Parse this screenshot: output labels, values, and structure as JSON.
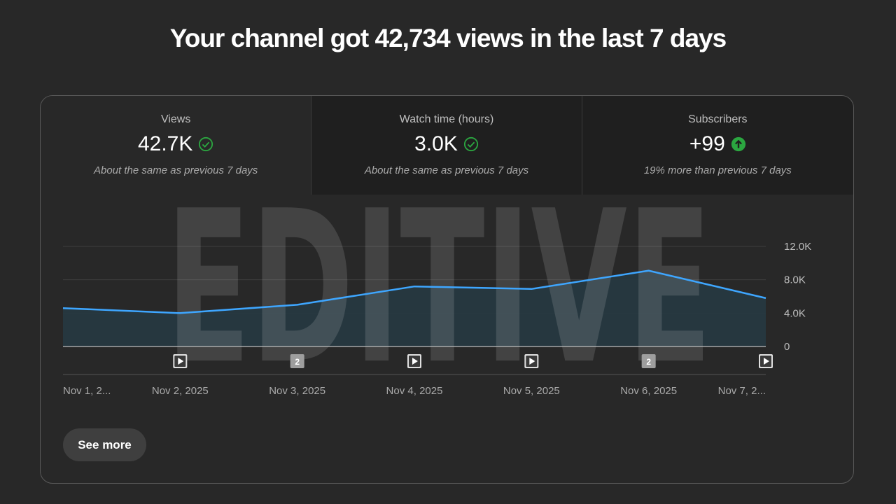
{
  "headline": "Your channel got 42,734 views in the last 7 days",
  "metrics": [
    {
      "title": "Views",
      "value": "42.7K",
      "note": "About the same as previous 7 days",
      "icon": "check-circle-icon"
    },
    {
      "title": "Watch time (hours)",
      "value": "3.0K",
      "note": "About the same as previous 7 days",
      "icon": "check-circle-icon"
    },
    {
      "title": "Subscribers",
      "value": "+99",
      "note": "19% more than previous 7 days",
      "icon": "arrow-up-circle-icon"
    }
  ],
  "watermark_text": "EDITIVE",
  "colors": {
    "line": "#3ea6ff",
    "check": "#2ba640",
    "arrow_up": "#2ba640",
    "fill": "#263841"
  },
  "chart_data": {
    "type": "area",
    "x": [
      "Nov 1, 2...",
      "Nov 2, 2025",
      "Nov 3, 2025",
      "Nov 4, 2025",
      "Nov 5, 2025",
      "Nov 6, 2025",
      "Nov 7, 2..."
    ],
    "values": [
      4600,
      4000,
      5000,
      7200,
      6900,
      9100,
      5800
    ],
    "ylim": [
      0,
      12000
    ],
    "yticks": [
      {
        "value": 12000,
        "label": "12.0K"
      },
      {
        "value": 8000,
        "label": "8.0K"
      },
      {
        "value": 4000,
        "label": "4.0K"
      },
      {
        "value": 0,
        "label": "0"
      }
    ],
    "markers": [
      {
        "x_index": 1,
        "type": "play",
        "label": ""
      },
      {
        "x_index": 2,
        "type": "count",
        "label": "2"
      },
      {
        "x_index": 3,
        "type": "play",
        "label": ""
      },
      {
        "x_index": 4,
        "type": "play",
        "label": ""
      },
      {
        "x_index": 5,
        "type": "count",
        "label": "2"
      },
      {
        "x_index": 6,
        "type": "play",
        "label": ""
      }
    ],
    "grid": true
  },
  "see_more_label": "See more"
}
